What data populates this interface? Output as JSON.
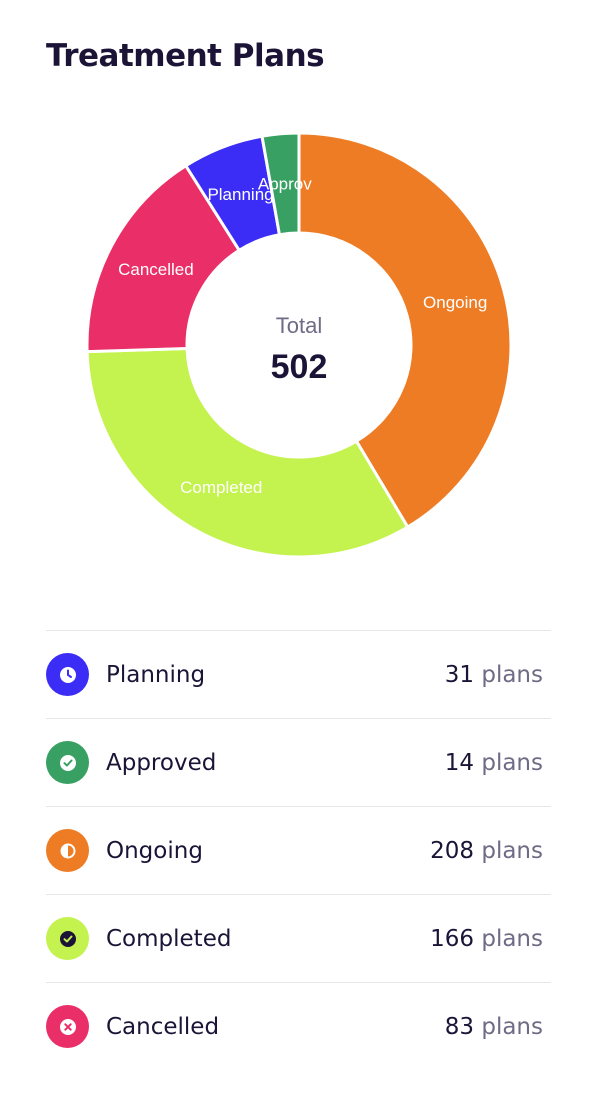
{
  "title": "Treatment Plans",
  "center": {
    "label": "Total",
    "value": "502"
  },
  "chart_data": {
    "type": "pie",
    "subtype": "donut",
    "categories": [
      "Planning",
      "Approved",
      "Ongoing",
      "Completed",
      "Cancelled"
    ],
    "values": [
      31,
      14,
      208,
      166,
      83
    ],
    "slice_order_clockwise_from_top": [
      "Ongoing",
      "Completed",
      "Cancelled",
      "Planning",
      "Approved"
    ],
    "colors": {
      "Planning": "#3b2df5",
      "Approved": "#37a062",
      "Ongoing": "#ee7c24",
      "Completed": "#c4f24e",
      "Cancelled": "#ea2e67"
    },
    "slice_labels": {
      "Planning": "Planning",
      "Approved": "Approv",
      "Ongoing": "Ongoing",
      "Completed": "Completed",
      "Cancelled": "Cancelled"
    },
    "total": 502
  },
  "legend": {
    "unit": "plans",
    "items": [
      {
        "key": "Planning",
        "label": "Planning",
        "count": "31",
        "color": "#3b2df5",
        "icon": "clock-icon"
      },
      {
        "key": "Approved",
        "label": "Approved",
        "count": "14",
        "color": "#37a062",
        "icon": "check-circle-icon"
      },
      {
        "key": "Ongoing",
        "label": "Ongoing",
        "count": "208",
        "color": "#ee7c24",
        "icon": "half-circle-icon"
      },
      {
        "key": "Completed",
        "label": "Completed",
        "count": "166",
        "color": "#c4f24e",
        "icon": "check-badge-icon"
      },
      {
        "key": "Cancelled",
        "label": "Cancelled",
        "count": "83",
        "color": "#ea2e67",
        "icon": "x-circle-icon"
      }
    ]
  }
}
